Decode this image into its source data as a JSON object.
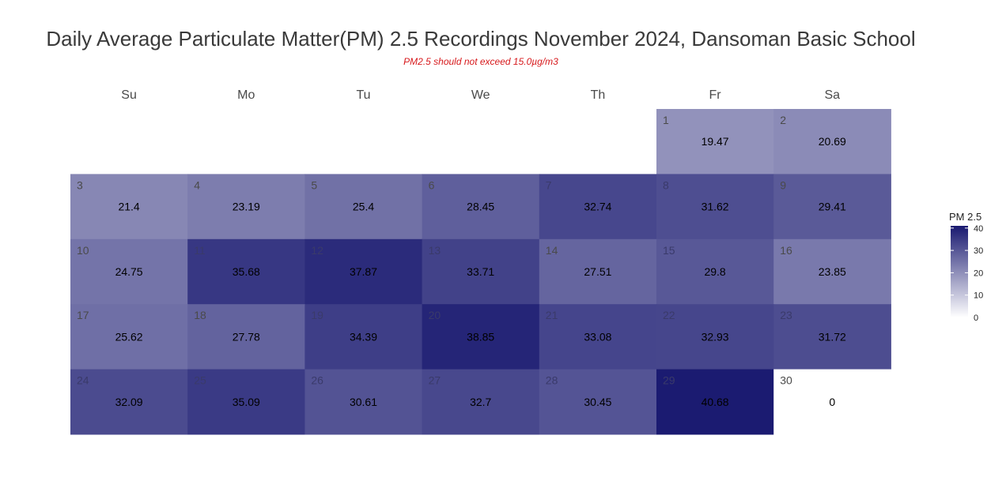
{
  "chart_data": {
    "type": "heatmap",
    "title": "Daily Average Particulate Matter(PM) 2.5 Recordings November 2024,  Dansoman Basic School",
    "subtitle": "PM2.5 should not exceed 15.0µg/m3",
    "weekdays": [
      "Su",
      "Mo",
      "Tu",
      "We",
      "Th",
      "Fr",
      "Sa"
    ],
    "first_weekday_index": 5,
    "days": [
      1,
      2,
      3,
      4,
      5,
      6,
      7,
      8,
      9,
      10,
      11,
      12,
      13,
      14,
      15,
      16,
      17,
      18,
      19,
      20,
      21,
      22,
      23,
      24,
      25,
      26,
      27,
      28,
      29,
      30
    ],
    "value_labels": [
      "19.47",
      "20.69",
      "21.4",
      "23.19",
      "25.4",
      "28.45",
      "32.74",
      "31.62",
      "29.41",
      "24.75",
      "35.68",
      "37.87",
      "33.71",
      "27.51",
      "29.8",
      "23.85",
      "25.62",
      "27.78",
      "34.39",
      "38.85",
      "33.08",
      "32.93",
      "31.72",
      "32.09",
      "35.09",
      "30.61",
      "32.7",
      "30.45",
      "40.68",
      "0"
    ],
    "values": [
      19.47,
      20.69,
      21.4,
      23.19,
      25.4,
      28.45,
      32.74,
      31.62,
      29.41,
      24.75,
      35.68,
      37.87,
      33.71,
      27.51,
      29.8,
      23.85,
      25.62,
      27.78,
      34.39,
      38.85,
      33.08,
      32.93,
      31.72,
      32.09,
      35.09,
      30.61,
      32.7,
      30.45,
      40.68,
      0
    ],
    "color_scale": {
      "low": "#ffffff",
      "high": "#191970",
      "range": [
        0,
        41
      ]
    },
    "legend": {
      "title": "PM 2.5",
      "ticks": [
        0,
        10,
        20,
        30,
        40
      ],
      "placement": "right"
    }
  }
}
